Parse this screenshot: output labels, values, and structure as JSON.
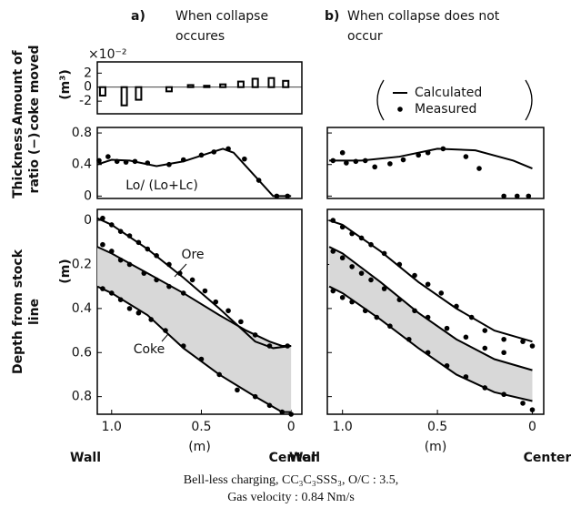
{
  "chart_data": [
    {
      "type": "bar",
      "label": "a)",
      "title": [
        "When collapse",
        "occures"
      ],
      "ylabel": [
        "Amount of",
        "coke moved"
      ],
      "yunit": "(m³)",
      "multiplier": "×10⁻²",
      "xlim": [
        1.08,
        -0.06
      ],
      "ylim": [
        -3.8,
        3.6
      ],
      "yticks": [
        2,
        0,
        -2
      ],
      "color": "#000000",
      "x": [
        1.05,
        0.93,
        0.85,
        0.68,
        0.56,
        0.47,
        0.38,
        0.28,
        0.2,
        0.11,
        0.03
      ],
      "values": [
        -1.2,
        -2.6,
        -1.8,
        -0.6,
        0.3,
        0.2,
        0.4,
        0.8,
        1.2,
        1.3,
        0.9
      ]
    },
    {
      "type": "line",
      "ylabel": [
        "Thickness",
        "ratio (−)"
      ],
      "annotations": [
        "Lo/ (Lo+Lc)"
      ],
      "xlim": [
        1.08,
        -0.06
      ],
      "ylim": [
        -0.03,
        0.87
      ],
      "yticks": [
        0.8,
        0.4,
        0
      ],
      "color": "#000000",
      "series": [
        {
          "lines": [
            {
              "x": [
                1.08,
                1.0,
                0.9,
                0.75,
                0.6,
                0.45,
                0.38,
                0.32,
                0.2,
                0.1,
                0.0
              ],
              "values": [
                0.4,
                0.46,
                0.45,
                0.38,
                0.44,
                0.55,
                0.6,
                0.55,
                0.25,
                0.0,
                0.0
              ]
            }
          ]
        },
        {
          "x": [
            1.07,
            1.02,
            0.97,
            0.92,
            0.87,
            0.8,
            0.68,
            0.6,
            0.5,
            0.43,
            0.35,
            0.26,
            0.18,
            0.08,
            0.02
          ],
          "values": [
            0.45,
            0.5,
            0.44,
            0.43,
            0.44,
            0.42,
            0.4,
            0.46,
            0.52,
            0.56,
            0.6,
            0.47,
            0.2,
            0.0,
            0.0
          ]
        }
      ]
    },
    {
      "type": "line",
      "ylabel": [
        "Depth from stock",
        "line"
      ],
      "yunit": "(m)",
      "annotations": [
        "Ore",
        "Coke"
      ],
      "xlabel": "(m)",
      "xleft": "Wall",
      "xright": "Center",
      "xlim": [
        1.08,
        -0.06
      ],
      "ylim": [
        -0.05,
        0.88
      ],
      "invert_y": true,
      "yticks": [
        0,
        0.2,
        0.4,
        0.6,
        0.8
      ],
      "xticks": [
        {
          "value": 1,
          "label": "1.0"
        },
        0.5,
        0
      ],
      "color": "#000000",
      "shade": "#d8d8d8",
      "series": [
        {
          "lines": [
            {
              "x": [
                1.08,
                1.0,
                0.8,
                0.6,
                0.4,
                0.2,
                0.1,
                0.0
              ],
              "values": [
                -0.01,
                0.02,
                0.13,
                0.26,
                0.4,
                0.55,
                0.58,
                0.57
              ]
            },
            {
              "x": [
                1.08,
                1.0,
                0.8,
                0.6,
                0.4,
                0.25,
                0.12,
                0.05,
                0.0
              ],
              "values": [
                0.12,
                0.15,
                0.24,
                0.33,
                0.43,
                0.5,
                0.55,
                0.57,
                0.57
              ]
            },
            {
              "x": [
                1.08,
                1.0,
                0.8,
                0.6,
                0.4,
                0.2,
                0.05,
                0.0
              ],
              "values": [
                0.3,
                0.33,
                0.43,
                0.58,
                0.7,
                0.8,
                0.87,
                0.87
              ]
            }
          ]
        },
        {
          "x": [
            1.05,
            1.0,
            0.95,
            0.9,
            0.85,
            0.8,
            0.75,
            0.68,
            0.62,
            0.55,
            0.48,
            0.42,
            0.35,
            0.28,
            0.2,
            0.12,
            0.02,
            1.05,
            1.0,
            0.95,
            0.9,
            0.82,
            0.75,
            0.68,
            0.6,
            1.05,
            1.0,
            0.95,
            0.9,
            0.85,
            0.78,
            0.7,
            0.6,
            0.5,
            0.4,
            0.3,
            0.2,
            0.12,
            0.05,
            0.0
          ],
          "values": [
            -0.01,
            0.02,
            0.05,
            0.07,
            0.1,
            0.13,
            0.16,
            0.2,
            0.24,
            0.27,
            0.32,
            0.37,
            0.41,
            0.46,
            0.52,
            0.57,
            0.57,
            0.11,
            0.14,
            0.18,
            0.2,
            0.24,
            0.27,
            0.3,
            0.33,
            0.31,
            0.33,
            0.36,
            0.4,
            0.42,
            0.45,
            0.5,
            0.57,
            0.63,
            0.7,
            0.77,
            0.8,
            0.84,
            0.87,
            0.88
          ]
        }
      ]
    },
    {
      "type": "line",
      "label": "b)",
      "title": [
        "When collapse does not",
        "occur"
      ],
      "legend": "top",
      "xlim": [
        1.08,
        -0.06
      ],
      "ylim": [
        -0.03,
        0.87
      ],
      "yticks": [
        0.8,
        0.4,
        0
      ],
      "ytick_labels": false,
      "color": "#000000",
      "series": [
        {
          "name": "Calculated",
          "lines": [
            {
              "x": [
                1.07,
                0.9,
                0.7,
                0.5,
                0.3,
                0.1,
                0.0
              ],
              "values": [
                0.45,
                0.45,
                0.5,
                0.6,
                0.58,
                0.45,
                0.35
              ]
            }
          ]
        },
        {
          "name": "Measured",
          "x": [
            1.05,
            1.0,
            0.98,
            0.93,
            0.88,
            0.83,
            0.75,
            0.68,
            0.6,
            0.55,
            0.47,
            0.35,
            0.28,
            0.15,
            0.08,
            0.02
          ],
          "values": [
            0.45,
            0.55,
            0.42,
            0.44,
            0.45,
            0.37,
            0.41,
            0.46,
            0.52,
            0.55,
            0.6,
            0.5,
            0.35,
            0.0,
            0.0,
            0.0
          ]
        }
      ]
    },
    {
      "type": "line",
      "xlabel": "(m)",
      "xleft": "Wall",
      "xright": "Center",
      "xlim": [
        1.08,
        -0.06
      ],
      "ylim": [
        -0.05,
        0.88
      ],
      "invert_y": true,
      "ytick_labels": false,
      "yticks": [
        0,
        0.2,
        0.4,
        0.6,
        0.8
      ],
      "xticks": [
        {
          "value": 1,
          "label": "1.0"
        },
        0.5,
        0
      ],
      "color": "#000000",
      "shade": "#d8d8d8",
      "series": [
        {
          "lines": [
            {
              "x": [
                1.07,
                1.0,
                0.8,
                0.6,
                0.4,
                0.2,
                0.0
              ],
              "values": [
                0.0,
                0.02,
                0.14,
                0.28,
                0.4,
                0.5,
                0.55
              ]
            },
            {
              "x": [
                1.07,
                1.0,
                0.8,
                0.6,
                0.4,
                0.2,
                0.0
              ],
              "values": [
                0.12,
                0.15,
                0.28,
                0.42,
                0.54,
                0.63,
                0.68
              ]
            },
            {
              "x": [
                1.07,
                1.0,
                0.8,
                0.6,
                0.4,
                0.2,
                0.0
              ],
              "values": [
                0.3,
                0.33,
                0.45,
                0.58,
                0.7,
                0.78,
                0.82
              ]
            }
          ]
        },
        {
          "x": [
            1.05,
            1.0,
            0.95,
            0.9,
            0.85,
            0.78,
            0.7,
            0.62,
            0.55,
            0.48,
            0.4,
            0.32,
            0.25,
            0.15,
            0.05,
            0.0,
            1.05,
            1.0,
            0.95,
            0.9,
            0.85,
            0.78,
            0.7,
            0.62,
            0.55,
            0.45,
            0.35,
            0.25,
            0.15,
            1.05,
            1.0,
            0.95,
            0.88,
            0.82,
            0.75,
            0.65,
            0.55,
            0.45,
            0.35,
            0.25,
            0.15,
            0.05,
            0.0
          ],
          "values": [
            0.0,
            0.03,
            0.06,
            0.08,
            0.11,
            0.15,
            0.2,
            0.25,
            0.29,
            0.33,
            0.39,
            0.44,
            0.5,
            0.54,
            0.55,
            0.57,
            0.14,
            0.17,
            0.21,
            0.24,
            0.27,
            0.31,
            0.36,
            0.41,
            0.44,
            0.49,
            0.53,
            0.58,
            0.6,
            0.32,
            0.35,
            0.37,
            0.41,
            0.44,
            0.48,
            0.54,
            0.6,
            0.66,
            0.71,
            0.76,
            0.79,
            0.83,
            0.86
          ]
        }
      ]
    }
  ],
  "caption": [
    "Bell-less charging, CC₃C₃SSS₃, O/C : 3.5,",
    "Gas velocity : 0.84 Nm/s"
  ]
}
